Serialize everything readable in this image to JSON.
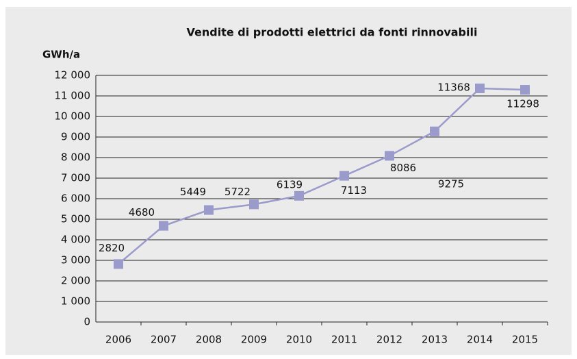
{
  "chart_data": {
    "type": "line",
    "title": "Vendite di prodotti elettrici da fonti rinnovabili",
    "y_label": "GWh/a",
    "categories": [
      "2006",
      "2007",
      "2008",
      "2009",
      "2010",
      "2011",
      "2012",
      "2013",
      "2014",
      "2015"
    ],
    "series": [
      {
        "name": "Vendite",
        "color": "#9a9acb",
        "values": [
          2820,
          4680,
          5449,
          5722,
          6139,
          7113,
          8086,
          9275,
          11368,
          11298
        ]
      }
    ],
    "ylim": [
      0,
      12000
    ],
    "yticks": [
      0,
      {
        "value": 1000,
        "label": "1 000"
      },
      {
        "value": 2000,
        "label": "2 000"
      },
      {
        "value": 3000,
        "label": "3 000"
      },
      {
        "value": 4000,
        "label": "4 000"
      },
      {
        "value": 5000,
        "label": "5 000"
      },
      {
        "value": 6000,
        "label": "6 000"
      },
      {
        "value": 7000,
        "label": "7 000"
      },
      {
        "value": 8000,
        "label": "8 000"
      },
      {
        "value": 9000,
        "label": "9 000"
      },
      {
        "value": 10000,
        "label": "10 000"
      },
      {
        "value": 11000,
        "label": "11 000"
      },
      {
        "value": 12000,
        "label": "12 000"
      }
    ],
    "grid": true
  }
}
